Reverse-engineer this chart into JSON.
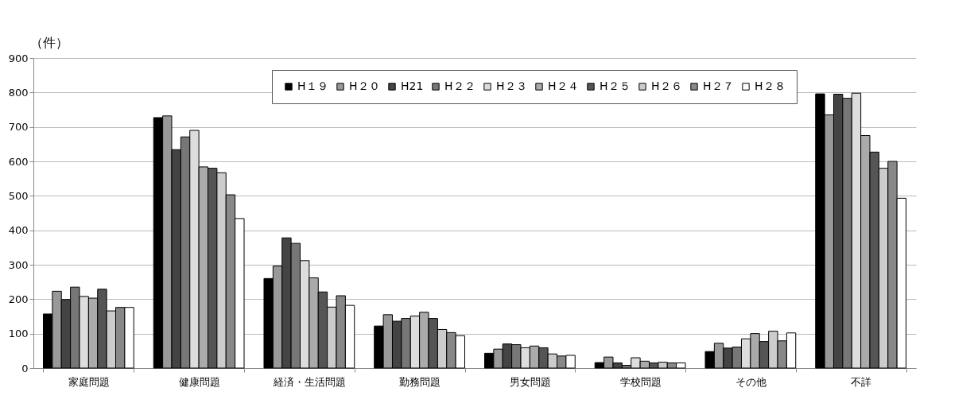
{
  "chart_data": {
    "type": "bar",
    "ylabel": "（件）",
    "categories": [
      "家庭問題",
      "健康問題",
      "経済・生活問題",
      "勤務問題",
      "男女問題",
      "学校問題",
      "その他",
      "不詳"
    ],
    "ylim": [
      0,
      900
    ],
    "yticks": [
      0,
      100,
      200,
      300,
      400,
      500,
      600,
      700,
      800,
      900
    ],
    "grid": "y",
    "legend": "top",
    "series": [
      {
        "name": "H１９",
        "color": "#000000",
        "values": [
          157,
          727,
          260,
          122,
          43,
          16,
          48,
          796
        ]
      },
      {
        "name": "H２０",
        "color": "#999999",
        "values": [
          223,
          732,
          296,
          155,
          55,
          32,
          72,
          735
        ]
      },
      {
        "name": "H21",
        "color": "#444444",
        "values": [
          199,
          634,
          378,
          136,
          70,
          15,
          58,
          795
        ]
      },
      {
        "name": "H２２",
        "color": "#777777",
        "values": [
          235,
          671,
          362,
          144,
          68,
          8,
          61,
          783
        ]
      },
      {
        "name": "H２３",
        "color": "#dddddd",
        "values": [
          208,
          690,
          312,
          151,
          59,
          30,
          85,
          798
        ]
      },
      {
        "name": "H２４",
        "color": "#aaaaaa",
        "values": [
          203,
          584,
          262,
          162,
          64,
          20,
          100,
          675
        ]
      },
      {
        "name": "H２５",
        "color": "#555555",
        "values": [
          229,
          580,
          221,
          144,
          59,
          15,
          77,
          627
        ]
      },
      {
        "name": "H２６",
        "color": "#cccccc",
        "values": [
          166,
          567,
          177,
          112,
          41,
          17,
          107,
          580
        ]
      },
      {
        "name": "H２７",
        "color": "#888888",
        "values": [
          176,
          503,
          210,
          103,
          35,
          15,
          79,
          600
        ]
      },
      {
        "name": "H２８",
        "color": "#ffffff",
        "values": [
          176,
          434,
          182,
          94,
          37,
          15,
          102,
          493
        ]
      }
    ]
  }
}
